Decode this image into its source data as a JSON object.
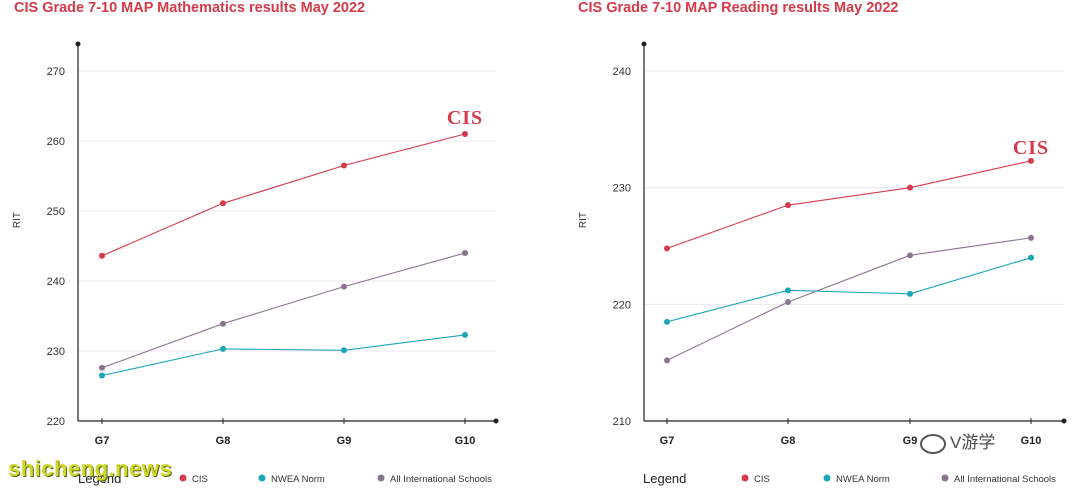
{
  "charts": [
    {
      "title": "CIS Grade 7-10 MAP Mathematics results May 2022",
      "ylabel": "RIT",
      "legend_title": "Legend",
      "logo_text": "CIS"
    },
    {
      "title": "CIS Grade 7-10 MAP Reading results May 2022",
      "ylabel": "RIT",
      "legend_title": "Legend",
      "logo_text": "CIS"
    }
  ],
  "colors": {
    "cis": "#d63a4a",
    "nwea": "#1aa6b7",
    "intl": "#8a7590",
    "title": "#d63a4a"
  },
  "chart_data": [
    {
      "type": "line",
      "title": "CIS Grade 7-10 MAP Mathematics results May 2022",
      "xlabel": "",
      "ylabel": "RIT",
      "categories": [
        "G7",
        "G8",
        "G9",
        "G10"
      ],
      "ylim": [
        220,
        270
      ],
      "yticks": [
        220,
        230,
        240,
        250,
        260,
        270
      ],
      "grid": true,
      "legend": "bottom",
      "series": [
        {
          "name": "CIS",
          "color": "#d63a4a",
          "values": [
            243.6,
            251.1,
            256.5,
            261.0
          ]
        },
        {
          "name": "NWEA Norm",
          "color": "#1aa6b7",
          "values": [
            226.5,
            230.3,
            230.1,
            232.3
          ]
        },
        {
          "name": "All International Schools",
          "color": "#8a7590",
          "values": [
            227.6,
            233.9,
            239.2,
            244.0
          ]
        }
      ]
    },
    {
      "type": "line",
      "title": "CIS Grade 7-10 MAP Reading results May 2022",
      "xlabel": "",
      "ylabel": "RIT",
      "categories": [
        "G7",
        "G8",
        "G9",
        "G10"
      ],
      "ylim": [
        210,
        240
      ],
      "yticks": [
        210,
        220,
        230,
        240
      ],
      "grid": true,
      "legend": "bottom",
      "series": [
        {
          "name": "CIS",
          "color": "#d63a4a",
          "values": [
            224.8,
            228.5,
            230.0,
            232.3
          ]
        },
        {
          "name": "NWEA Norm",
          "color": "#1aa6b7",
          "values": [
            218.5,
            221.2,
            220.9,
            224.0
          ]
        },
        {
          "name": "All International Schools",
          "color": "#8a7590",
          "values": [
            215.2,
            220.2,
            224.2,
            225.7
          ]
        }
      ]
    }
  ],
  "watermark": "shicheng.news",
  "wechat_tag": "V游学"
}
